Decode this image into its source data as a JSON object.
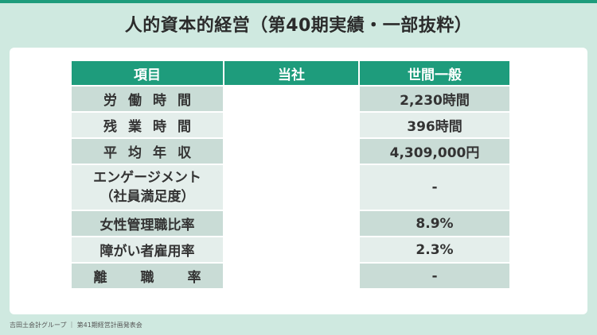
{
  "title": "人的資本的経営（第40期実績・一部抜粋）",
  "table": {
    "headers": [
      "項目",
      "当社",
      "世間一般"
    ],
    "rows": [
      {
        "item": "労働時間",
        "company": "",
        "general": "2,230時間"
      },
      {
        "item": "残業時間",
        "company": "",
        "general": "396時間"
      },
      {
        "item": "平均年収",
        "company": "",
        "general": "4,309,000円"
      },
      {
        "item": "エンゲージメント",
        "item_sub": "（社員満足度）",
        "company": "",
        "general": "-"
      },
      {
        "item": "女性管理職比率",
        "company": "",
        "general": "8.9%"
      },
      {
        "item": "障がい者雇用率",
        "company": "",
        "general": "2.3%"
      },
      {
        "item": "離職率",
        "company": "",
        "general": "-"
      }
    ]
  },
  "footer": "吉田土会計グループ ｜ 第41期経営計画発表会",
  "colors": {
    "accent": "#1e9c7c",
    "background": "#cfe9e0",
    "row_dark": "#c9dcd6",
    "row_light": "#e4eeeb"
  }
}
